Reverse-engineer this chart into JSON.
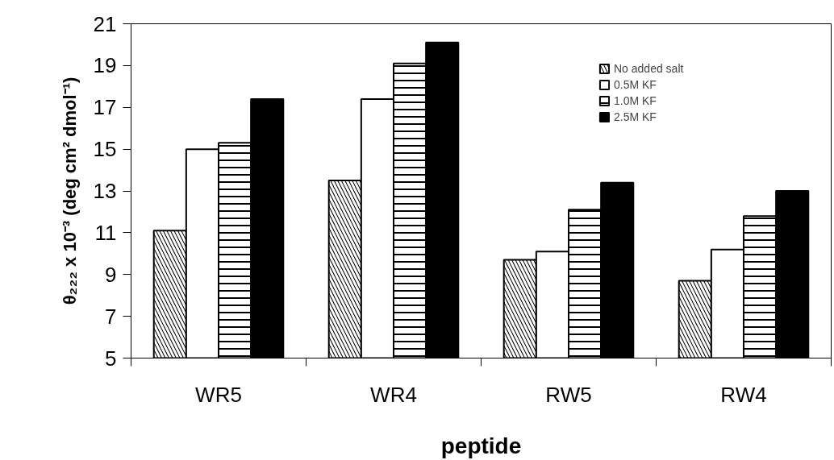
{
  "chart_data": {
    "type": "bar",
    "xlabel": "peptide",
    "ylabel": "θ₂₂₂ x 10⁻³ (deg cm² dmol⁻¹)",
    "categories": [
      "WR5",
      "WR4",
      "RW5",
      "RW4"
    ],
    "series": [
      {
        "name": "No added salt",
        "color": "#000000",
        "values": [
          11.1,
          13.5,
          9.7,
          8.7
        ]
      },
      {
        "name": "0.5M KF",
        "color": "#ffffff",
        "values": [
          15.0,
          17.4,
          10.1,
          10.2
        ]
      },
      {
        "name": "1.0M KF",
        "color": "#000000",
        "values": [
          15.3,
          19.1,
          12.1,
          11.8
        ]
      },
      {
        "name": "2.5M KF",
        "color": "#000000",
        "values": [
          17.4,
          20.1,
          13.4,
          13.0
        ]
      }
    ],
    "ylim": [
      5,
      21
    ],
    "yticks": [
      5,
      7,
      9,
      11,
      13,
      15,
      17,
      19,
      21
    ],
    "grid": false,
    "legend": "top right"
  }
}
